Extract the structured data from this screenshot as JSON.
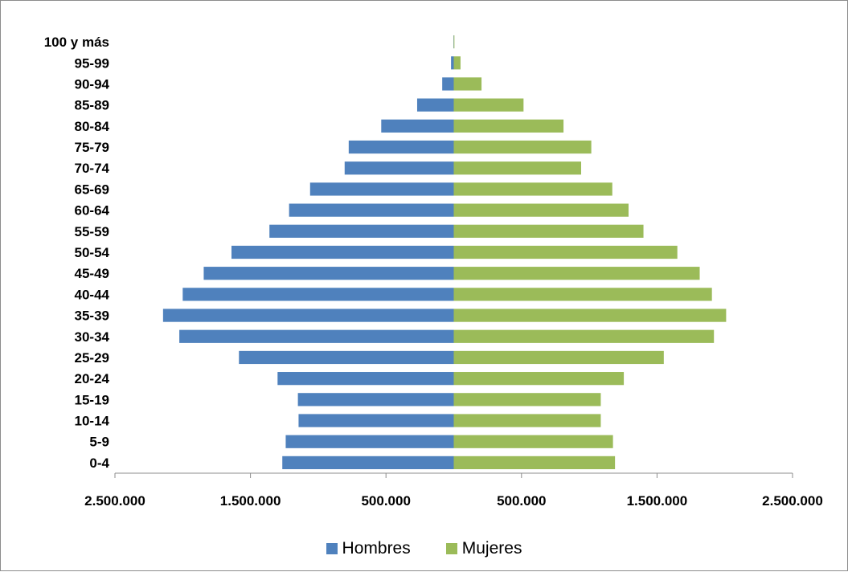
{
  "chart_data": {
    "type": "bar",
    "orientation": "horizontal",
    "subtype": "population-pyramid",
    "categories": [
      "0-4",
      "5-9",
      "10-14",
      "15-19",
      "20-24",
      "25-29",
      "30-34",
      "35-39",
      "40-44",
      "45-49",
      "50-54",
      "55-59",
      "60-64",
      "65-69",
      "70-74",
      "75-79",
      "80-84",
      "85-89",
      "90-94",
      "95-99",
      "100 y más"
    ],
    "series": [
      {
        "name": "Hombres",
        "color": "#4f81bd",
        "side": "left",
        "values": [
          1265000,
          1240000,
          1145000,
          1150000,
          1300000,
          1585000,
          2025000,
          2145000,
          2000000,
          1845000,
          1640000,
          1360000,
          1215000,
          1060000,
          805000,
          775000,
          535000,
          270000,
          85000,
          20000,
          2000
        ]
      },
      {
        "name": "Mujeres",
        "color": "#9bbb59",
        "side": "right",
        "values": [
          1190000,
          1175000,
          1085000,
          1085000,
          1255000,
          1550000,
          1920000,
          2010000,
          1905000,
          1815000,
          1650000,
          1400000,
          1290000,
          1170000,
          940000,
          1015000,
          810000,
          515000,
          205000,
          50000,
          5000
        ]
      }
    ],
    "xlim": [
      -2500000,
      2500000
    ],
    "x_ticks": [
      -2500000,
      -1500000,
      -500000,
      500000,
      1500000,
      2500000
    ],
    "x_tick_labels": [
      "2.500.000",
      "1.500.000",
      "500.000",
      "500.000",
      "1.500.000",
      "2.500.000"
    ],
    "legend_position": "bottom",
    "grid": false
  }
}
